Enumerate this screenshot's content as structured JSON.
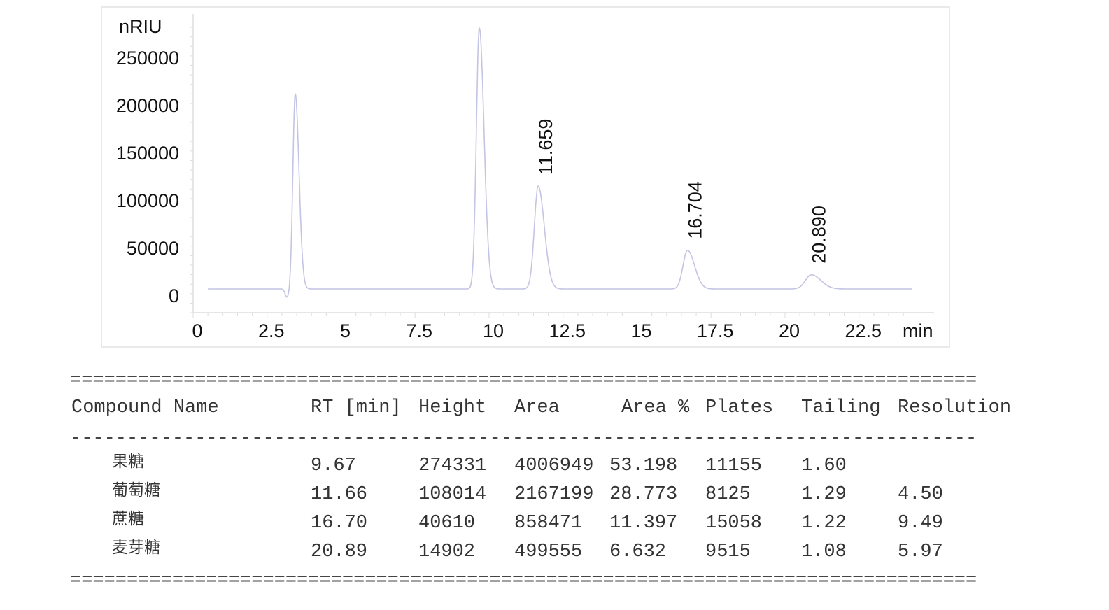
{
  "chart_data": {
    "type": "line",
    "ylabel": "nRIU",
    "xlabel": "min",
    "xlim": [
      0,
      24.3
    ],
    "ylim": [
      -25000,
      290000
    ],
    "x_ticks": [
      "0",
      "2.5",
      "5",
      "7.5",
      "10",
      "12.5",
      "15",
      "17.5",
      "20",
      "22.5"
    ],
    "y_ticks": [
      "0",
      "50000",
      "100000",
      "150000",
      "200000",
      "250000"
    ],
    "line_color": "#c4c4e4",
    "peaks": [
      {
        "rt": 3.17,
        "height": -9000,
        "width": 0.06,
        "label": ""
      },
      {
        "rt": 3.45,
        "height": 205000,
        "width": 0.08,
        "label": ""
      },
      {
        "rt": 9.67,
        "height": 274331,
        "width": 0.1,
        "label": ""
      },
      {
        "rt": 11.659,
        "height": 108014,
        "width": 0.13,
        "label": "11.659"
      },
      {
        "rt": 16.704,
        "height": 40610,
        "width": 0.15,
        "label": "16.704"
      },
      {
        "rt": 20.89,
        "height": 14902,
        "width": 0.2,
        "label": "20.890"
      }
    ]
  },
  "table": {
    "separator_double": "================================================================================",
    "separator_single": "--------------------------------------------------------------------------------",
    "headers": [
      "Compound Name",
      "RT [min]",
      "Height",
      "Area",
      "Area %",
      "Plates",
      "Tailing",
      "Resolution"
    ],
    "rows": [
      [
        "果糖",
        "9.67",
        "274331",
        "4006949",
        "53.198",
        "11155",
        "1.60",
        ""
      ],
      [
        "葡萄糖",
        "11.66",
        "108014",
        "2167199",
        "28.773",
        "8125",
        "1.29",
        "4.50"
      ],
      [
        "蔗糖",
        "16.70",
        "40610",
        "858471",
        "11.397",
        "15058",
        "1.22",
        "9.49"
      ],
      [
        "麦芽糖",
        "20.89",
        "14902",
        "499555",
        "6.632",
        "9515",
        "1.08",
        "5.97"
      ]
    ]
  }
}
